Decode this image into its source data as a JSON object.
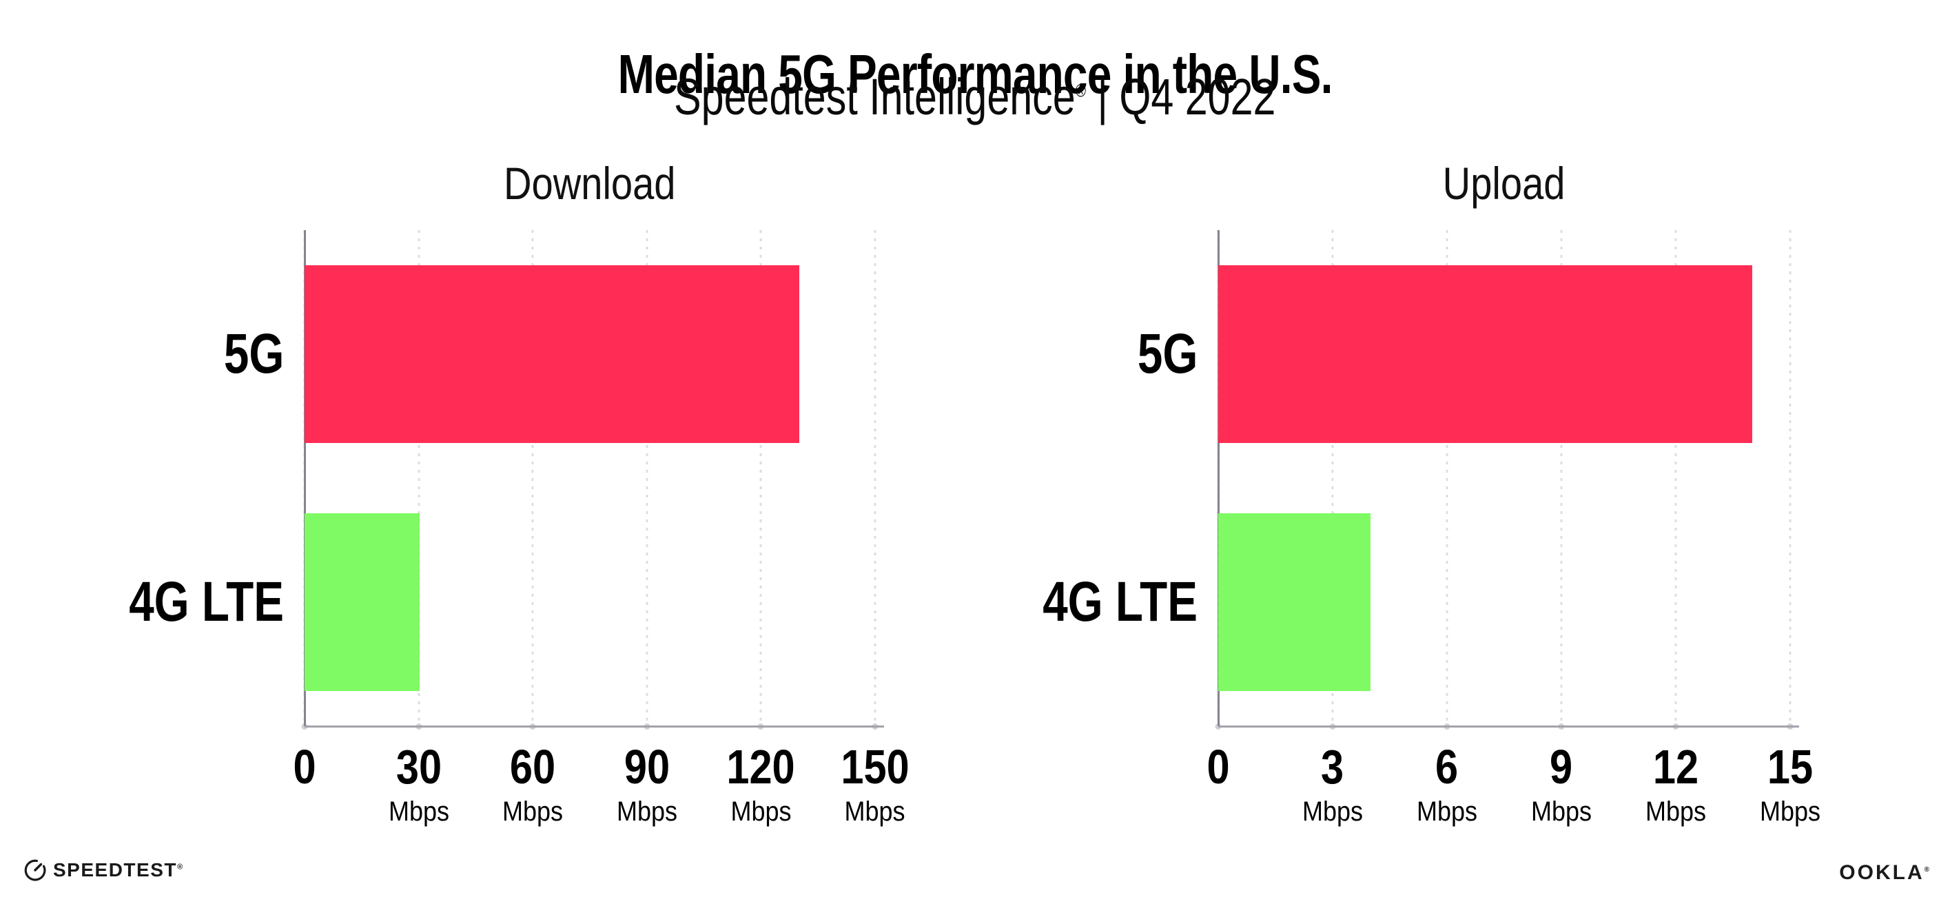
{
  "page": {
    "title": "Median 5G Performance in the U.S.",
    "subtitle": {
      "brand": "Speedtest Intelligence",
      "registered": "®",
      "rest": " | Q4 2022"
    }
  },
  "chart_data": [
    {
      "type": "bar",
      "orientation": "horizontal",
      "title": "Download",
      "categories": [
        "5G",
        "4G LTE"
      ],
      "values": [
        130,
        30.2
      ],
      "unit": "Mbps",
      "tick_unit_label": "Mbps",
      "xlim": [
        0,
        150
      ],
      "xticks": [
        0,
        30,
        60,
        90,
        120,
        150
      ],
      "bar_colors": [
        "#FF2D55",
        "#80FA64"
      ],
      "grid": "vertical-dotted",
      "legend": "none"
    },
    {
      "type": "bar",
      "orientation": "horizontal",
      "title": "Upload",
      "categories": [
        "5G",
        "4G LTE"
      ],
      "values": [
        14,
        4
      ],
      "unit": "Mbps",
      "tick_unit_label": "Mbps",
      "xlim": [
        0,
        15
      ],
      "xticks": [
        0,
        3,
        6,
        9,
        12,
        15
      ],
      "bar_colors": [
        "#FF2D55",
        "#80FA64"
      ],
      "grid": "vertical-dotted",
      "legend": "none"
    }
  ],
  "footer": {
    "speedtest_wordmark": "SPEEDTEST",
    "speedtest_registered": "®",
    "ookla_wordmark": "OOKLA",
    "ookla_registered": "®"
  },
  "colors": {
    "bar_5g": "#FF2D55",
    "bar_4g_lte": "#80FA64",
    "y_axis_line": "#85858d",
    "x_axis_line": "#a3a3ab",
    "gridline": "#dcdce6",
    "text": "#000000"
  }
}
